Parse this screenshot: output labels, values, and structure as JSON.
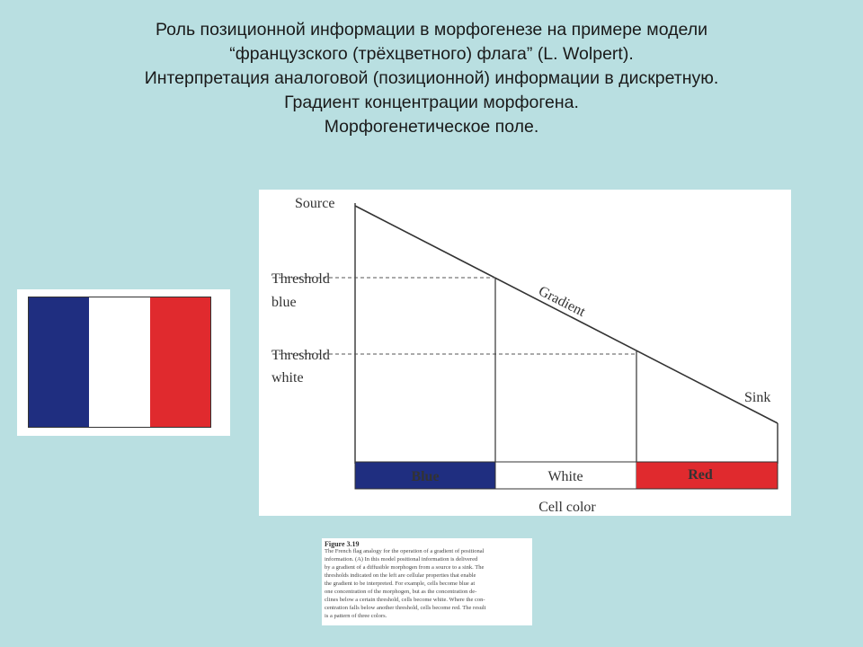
{
  "title": {
    "lines": [
      "Роль позиционной информации в морфогенезе на примере модели",
      "“французского (трёхцветного) флага”  (L. Wolpert).",
      "Интерпретация аналоговой (позиционной) информации в дискретную.",
      "Градиент концентрации морфогена.",
      "Морфогенетическое поле."
    ]
  },
  "flag": {
    "colors": {
      "blue": "#1f2e80",
      "white": "#ffffff",
      "red": "#e02a2e"
    }
  },
  "diagram": {
    "labels": {
      "source": "Source",
      "threshold_blue": [
        "Threshold",
        "blue"
      ],
      "threshold_white": [
        "Threshold",
        "white"
      ],
      "gradient": "Gradient",
      "sink": "Sink",
      "cell_color": "Cell color"
    },
    "bands": [
      {
        "label": "Blue",
        "color": "#1f2e80",
        "text_color": "#ffffff"
      },
      {
        "label": "White",
        "color": "#ffffff",
        "text_color": "#333333"
      },
      {
        "label": "Red",
        "color": "#e02a2e",
        "text_color": "#ffffff"
      }
    ]
  },
  "caption": {
    "heading": "Figure 3.19",
    "lines": [
      "The French flag analogy for the operation of a gradient of positional",
      "information. (A) In this model positional information is delivered",
      "by a gradient of a diffusible morphogen from a source to a sink. The",
      "thresholds indicated on the left are cellular properties that enable",
      "the gradient to be interpreted. For example, cells become blue at",
      "one concentration of the morphogen, but as the concentration de-",
      "clines below a certain threshold, cells become white. Where the con-",
      "centration falls below another threshold, cells become red. The result",
      "is a pattern of three colors."
    ]
  }
}
